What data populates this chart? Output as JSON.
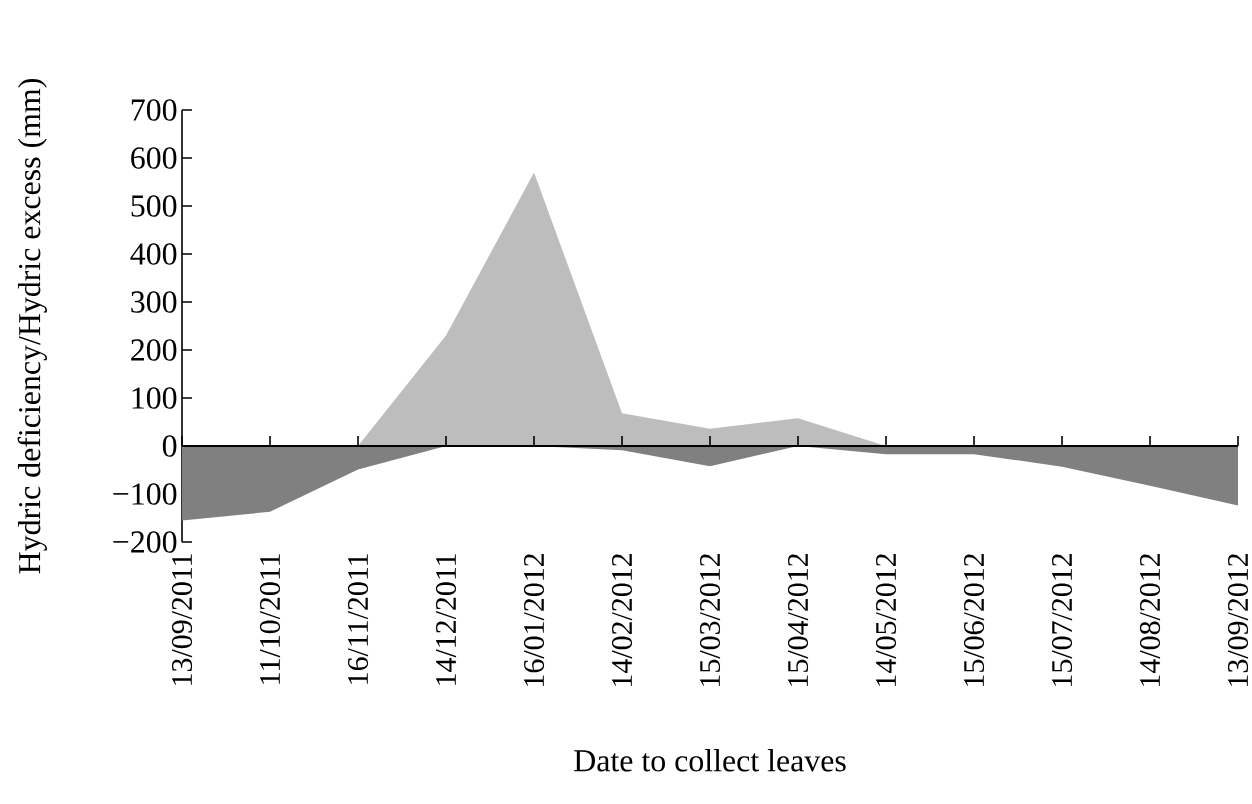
{
  "chart_data": {
    "type": "area",
    "xlabel": "Date to collect leaves",
    "ylabel": "Hydric deficiency/Hydric excess (mm)",
    "categories": [
      "13/09/2011",
      "11/10/2011",
      "16/11/2011",
      "14/12/2011",
      "16/01/2012",
      "14/02/2012",
      "15/03/2012",
      "15/04/2012",
      "14/05/2012",
      "15/06/2012",
      "15/07/2012",
      "14/08/2012",
      "13/09/2012"
    ],
    "series": [
      {
        "color": "#bdbdbd",
        "values": [
          0,
          0,
          0,
          230,
          570,
          68,
          36,
          58,
          0,
          0,
          0,
          0,
          0
        ]
      },
      {
        "color": "#808080",
        "values": [
          -155,
          -137,
          -49,
          0,
          0,
          -9,
          -42,
          0,
          -17,
          -17,
          -43,
          -83,
          -124
        ]
      }
    ],
    "ylim": [
      -200,
      700
    ],
    "yticks": [
      {
        "value": -200,
        "label": "−200"
      },
      {
        "value": -100,
        "label": "−100"
      },
      0,
      100,
      200,
      300,
      400,
      500,
      600,
      700
    ]
  }
}
